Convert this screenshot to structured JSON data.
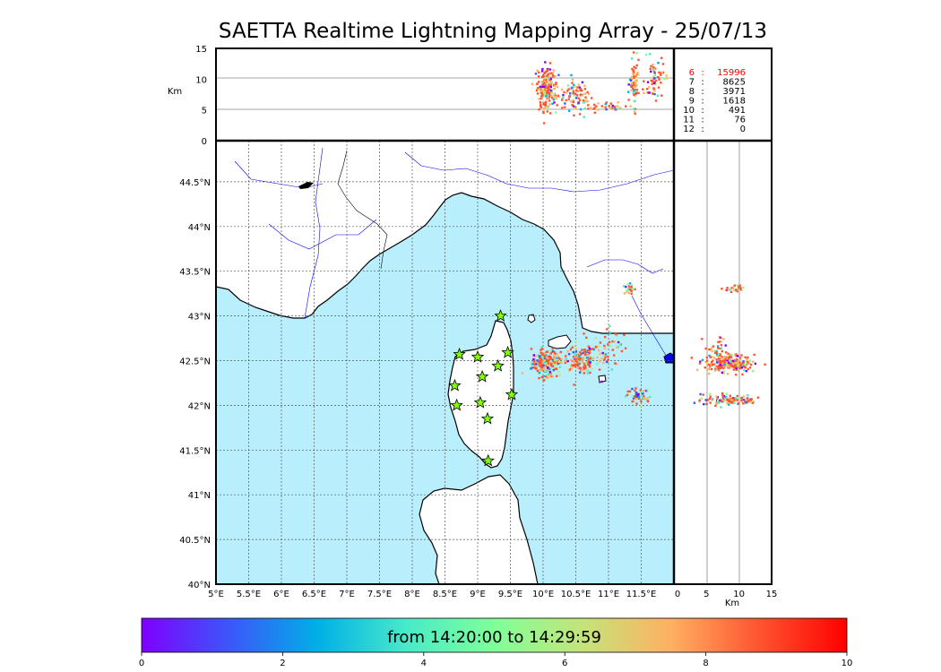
{
  "title": "SAETTA Realtime Lightning Mapping Array - 25/07/13",
  "colorbar": {
    "label": "from 14:20:00 to 14:29:59",
    "ticks": [
      "0",
      "2",
      "4",
      "6",
      "8",
      "10"
    ],
    "colors": [
      "#7f00ff",
      "#3b57f9",
      "#00b0e6",
      "#48eac9",
      "#80ff99",
      "#c4e47a",
      "#ffb062",
      "#ff5430",
      "#ff0000"
    ]
  },
  "colors": {
    "sea": "#b9effc",
    "coast": "#000000",
    "river": "#0000ff",
    "station": "#7fff00",
    "highlight": "#ff0000",
    "dotted_grid": "#555555"
  },
  "chart_data": [
    {
      "type": "scatter",
      "name": "plan-view",
      "xlabel": "",
      "ylabel": "",
      "xlim": [
        5,
        12
      ],
      "ylim": [
        40,
        44.96
      ],
      "xticks": [
        "5°E",
        "5.5°E",
        "6°E",
        "6.5°E",
        "7°E",
        "7.5°E",
        "8°E",
        "8.5°E",
        "9°E",
        "9.5°E",
        "10°E",
        "10.5°E",
        "11°E",
        "11.5°E"
      ],
      "yticks": [
        "40°N",
        "40.5°N",
        "41°N",
        "41.5°N",
        "42°N",
        "42.5°N",
        "43°N",
        "43.5°N",
        "44°N",
        "44.5°N"
      ],
      "grid": true,
      "stations": [
        [
          9.35,
          43.0
        ],
        [
          8.72,
          42.57
        ],
        [
          9.0,
          42.54
        ],
        [
          9.46,
          42.59
        ],
        [
          9.31,
          42.44
        ],
        [
          9.07,
          42.32
        ],
        [
          8.65,
          42.22
        ],
        [
          9.52,
          42.12
        ],
        [
          8.68,
          42.0
        ],
        [
          9.04,
          42.03
        ],
        [
          9.15,
          41.85
        ],
        [
          9.16,
          41.38
        ]
      ],
      "flash_clusters": [
        {
          "center": [
            10.05,
            42.47
          ],
          "spread": [
            0.18,
            0.12
          ],
          "count": 220
        },
        {
          "center": [
            10.55,
            42.52
          ],
          "spread": [
            0.22,
            0.12
          ],
          "count": 140
        },
        {
          "center": [
            11.45,
            42.1
          ],
          "spread": [
            0.15,
            0.08
          ],
          "count": 50
        },
        {
          "center": [
            11.33,
            43.3
          ],
          "spread": [
            0.1,
            0.05
          ],
          "count": 25
        },
        {
          "center": [
            10.9,
            42.65
          ],
          "spread": [
            0.35,
            0.22
          ],
          "count": 60
        }
      ]
    },
    {
      "type": "scatter",
      "name": "lon-altitude",
      "ylabel": "Km",
      "xlim": [
        5,
        12
      ],
      "ylim": [
        0,
        15
      ],
      "yticks": [
        "0",
        "5",
        "10",
        "15"
      ],
      "flash_clusters": [
        {
          "center": [
            10.05,
            8.5
          ],
          "spread": [
            0.12,
            3.0
          ],
          "count": 200
        },
        {
          "center": [
            10.5,
            7.0
          ],
          "spread": [
            0.2,
            2.2
          ],
          "count": 90
        },
        {
          "center": [
            11.0,
            5.5
          ],
          "spread": [
            0.25,
            0.8
          ],
          "count": 30
        },
        {
          "center": [
            11.4,
            9.0
          ],
          "spread": [
            0.06,
            3.0
          ],
          "count": 70
        },
        {
          "center": [
            11.7,
            10.0
          ],
          "spread": [
            0.12,
            3.0
          ],
          "count": 60
        }
      ]
    },
    {
      "type": "scatter",
      "name": "altitude-lat",
      "xlabel": "Km",
      "xlim": [
        0,
        15
      ],
      "ylim": [
        40,
        44.96
      ],
      "xticks": [
        "0",
        "5",
        "10",
        "15"
      ],
      "flash_clusters": [
        {
          "center": [
            8.5,
            42.47
          ],
          "spread": [
            3.2,
            0.08
          ],
          "count": 220
        },
        {
          "center": [
            8.5,
            42.06
          ],
          "spread": [
            3.5,
            0.05
          ],
          "count": 110
        },
        {
          "center": [
            9.5,
            43.3
          ],
          "spread": [
            1.5,
            0.05
          ],
          "count": 25
        },
        {
          "center": [
            6.5,
            42.65
          ],
          "spread": [
            1.5,
            0.1
          ],
          "count": 30
        }
      ]
    }
  ],
  "stats": [
    {
      "label": "6",
      "value": "15996",
      "highlight": true
    },
    {
      "label": "7",
      "value": "8625",
      "highlight": false
    },
    {
      "label": "8",
      "value": "3971",
      "highlight": false
    },
    {
      "label": "9",
      "value": "1618",
      "highlight": false
    },
    {
      "label": "10",
      "value": "491",
      "highlight": false
    },
    {
      "label": "11",
      "value": "76",
      "highlight": false
    },
    {
      "label": "12",
      "value": "0",
      "highlight": false
    }
  ]
}
